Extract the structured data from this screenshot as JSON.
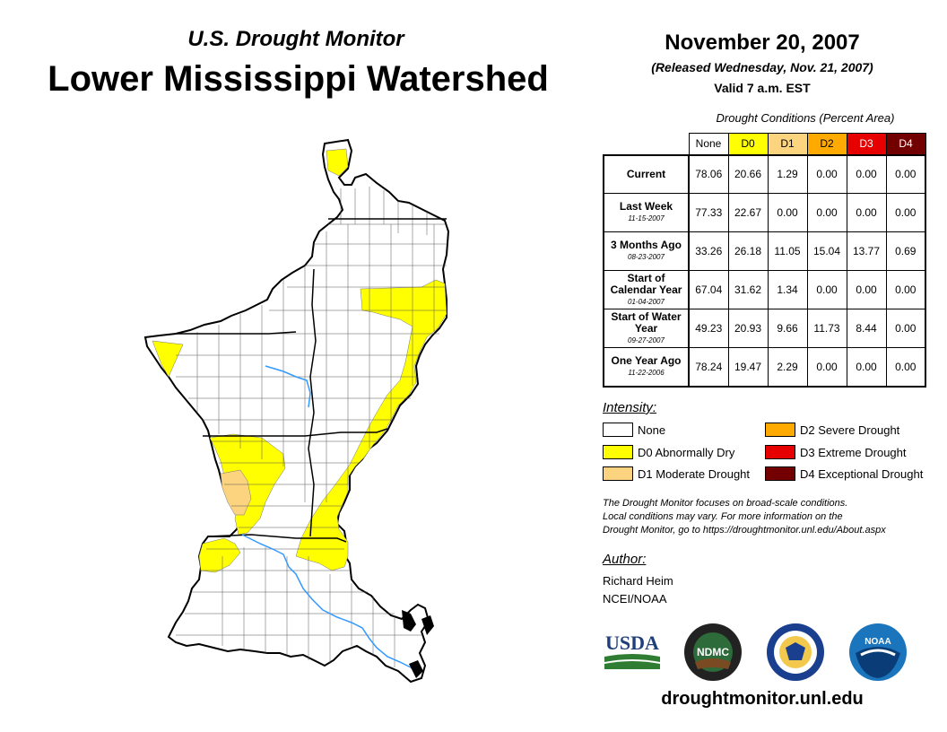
{
  "header": {
    "subtitle": "U.S. Drought Monitor",
    "title": "Lower Mississippi Watershed",
    "date": "November 20, 2007",
    "released": "(Released Wednesday, Nov. 21, 2007)",
    "valid": "Valid 7 a.m. EST"
  },
  "table": {
    "caption": "Drought Conditions (Percent Area)",
    "columns": [
      "None",
      "D0",
      "D1",
      "D2",
      "D3",
      "D4"
    ],
    "rows": [
      {
        "label": "Current",
        "sublabel": "",
        "values": [
          "78.06",
          "20.66",
          "1.29",
          "0.00",
          "0.00",
          "0.00"
        ]
      },
      {
        "label": "Last Week",
        "sublabel": "11-15-2007",
        "values": [
          "77.33",
          "22.67",
          "0.00",
          "0.00",
          "0.00",
          "0.00"
        ]
      },
      {
        "label": "3 Months Ago",
        "sublabel": "08-23-2007",
        "values": [
          "33.26",
          "26.18",
          "11.05",
          "15.04",
          "13.77",
          "0.69"
        ]
      },
      {
        "label": "Start of Calendar Year",
        "sublabel": "01-04-2007",
        "values": [
          "67.04",
          "31.62",
          "1.34",
          "0.00",
          "0.00",
          "0.00"
        ]
      },
      {
        "label": "Start of Water Year",
        "sublabel": "09-27-2007",
        "values": [
          "49.23",
          "20.93",
          "9.66",
          "11.73",
          "8.44",
          "0.00"
        ]
      },
      {
        "label": "One Year Ago",
        "sublabel": "11-22-2006",
        "values": [
          "78.24",
          "19.47",
          "2.29",
          "0.00",
          "0.00",
          "0.00"
        ]
      }
    ]
  },
  "colors": {
    "none": "#ffffff",
    "d0": "#ffff00",
    "d1": "#fcd37f",
    "d2": "#ffaa00",
    "d3": "#e60000",
    "d4": "#730000",
    "river": "#3399ff"
  },
  "legend": {
    "title": "Intensity:",
    "items": [
      {
        "code": "none",
        "label": "None"
      },
      {
        "code": "d0",
        "label": "D0 Abnormally Dry"
      },
      {
        "code": "d1",
        "label": "D1 Moderate Drought"
      },
      {
        "code": "d2",
        "label": "D2 Severe Drought"
      },
      {
        "code": "d3",
        "label": "D3 Extreme Drought"
      },
      {
        "code": "d4",
        "label": "D4 Exceptional Drought"
      }
    ]
  },
  "note": {
    "line1": "The Drought Monitor focuses on broad-scale conditions.",
    "line2": "Local conditions may vary. For more information on the",
    "line3": "Drought Monitor, go to https://droughtmonitor.unl.edu/About.aspx"
  },
  "author": {
    "title": "Author:",
    "name": "Richard Heim",
    "org": "NCEI/NOAA"
  },
  "logos": {
    "usda": "USDA",
    "ndmc": "NDMC",
    "noaa": "NOAA"
  },
  "footer": {
    "url": "droughtmonitor.unl.edu"
  }
}
